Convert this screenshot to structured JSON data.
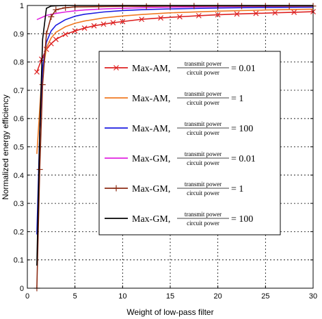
{
  "chart_data": {
    "type": "line",
    "title": "",
    "xlabel": "Weight of low-pass filter",
    "ylabel": "Normalized energy efficiency",
    "xlim": [
      0,
      30
    ],
    "ylim": [
      0,
      1
    ],
    "xticks": [
      "0",
      "5",
      "10",
      "15",
      "20",
      "25",
      "30"
    ],
    "yticks": [
      "0",
      "0.1",
      "0.2",
      "0.3",
      "0.4",
      "0.5",
      "0.6",
      "0.7",
      "0.8",
      "0.9",
      "1"
    ],
    "grid": true,
    "legend_position": "center-right",
    "legend_fraction": {
      "numerator": "transmit power",
      "denominator": "circuit power"
    },
    "series": [
      {
        "name": "Max-AM",
        "ratio": "= 0.01",
        "color": "#dd2020",
        "marker": "x",
        "x": [
          1,
          1.5,
          2,
          2.5,
          3,
          4,
          5,
          6,
          7,
          8,
          9,
          10,
          12,
          14,
          16,
          18,
          20,
          22,
          24,
          26,
          28,
          30
        ],
        "y": [
          0.765,
          0.81,
          0.845,
          0.865,
          0.88,
          0.898,
          0.91,
          0.92,
          0.928,
          0.934,
          0.939,
          0.943,
          0.951,
          0.956,
          0.96,
          0.964,
          0.967,
          0.97,
          0.972,
          0.974,
          0.976,
          0.978
        ]
      },
      {
        "name": "Max-AM",
        "ratio": "= 1",
        "color": "#f07820",
        "marker": "none",
        "x": [
          1,
          1.5,
          2,
          2.5,
          3,
          4,
          5,
          6,
          8,
          10,
          12,
          15,
          20,
          25,
          30
        ],
        "y": [
          0.475,
          0.74,
          0.85,
          0.885,
          0.905,
          0.925,
          0.937,
          0.945,
          0.956,
          0.963,
          0.968,
          0.974,
          0.98,
          0.984,
          0.987
        ]
      },
      {
        "name": "Max-AM",
        "ratio": "= 100",
        "color": "#1a1ae0",
        "marker": "none",
        "x": [
          1,
          1.3,
          1.6,
          2,
          2.5,
          3,
          4,
          5,
          6,
          8,
          10,
          12,
          15,
          20,
          25,
          30
        ],
        "y": [
          0.19,
          0.55,
          0.78,
          0.87,
          0.91,
          0.93,
          0.95,
          0.962,
          0.969,
          0.977,
          0.982,
          0.985,
          0.988,
          0.991,
          0.993,
          0.994
        ]
      },
      {
        "name": "Max-GM",
        "ratio": "= 0.01",
        "color": "#e020e0",
        "marker": "none",
        "x": [
          1,
          2,
          3,
          4,
          5,
          6,
          8,
          10,
          12,
          15,
          20,
          25,
          30
        ],
        "y": [
          0.95,
          0.965,
          0.972,
          0.977,
          0.981,
          0.984,
          0.988,
          0.99,
          0.992,
          0.994,
          0.996,
          0.997,
          0.998
        ]
      },
      {
        "name": "Max-GM",
        "ratio": "= 1",
        "color": "#8b2a12",
        "marker": "+",
        "x": [
          1,
          1.3,
          1.6,
          2,
          2.5,
          3,
          4,
          5,
          7.5,
          10,
          12.5,
          15,
          17.5,
          20,
          22.5,
          25,
          27.5,
          30
        ],
        "y": [
          0,
          0.42,
          0.72,
          0.9,
          0.96,
          0.985,
          0.992,
          0.995,
          0.996,
          0.997,
          0.997,
          0.998,
          0.998,
          0.998,
          0.998,
          0.998,
          0.998,
          0.998
        ]
      },
      {
        "name": "Max-GM",
        "ratio": "= 100",
        "color": "#000000",
        "marker": "none",
        "x": [
          1,
          1.3,
          1.6,
          2,
          2.5,
          3,
          4,
          5,
          10,
          15,
          20,
          25,
          30
        ],
        "y": [
          0.08,
          0.55,
          0.88,
          0.99,
          0.998,
          0.999,
          1,
          1,
          1,
          1,
          1,
          1,
          1
        ]
      }
    ]
  }
}
